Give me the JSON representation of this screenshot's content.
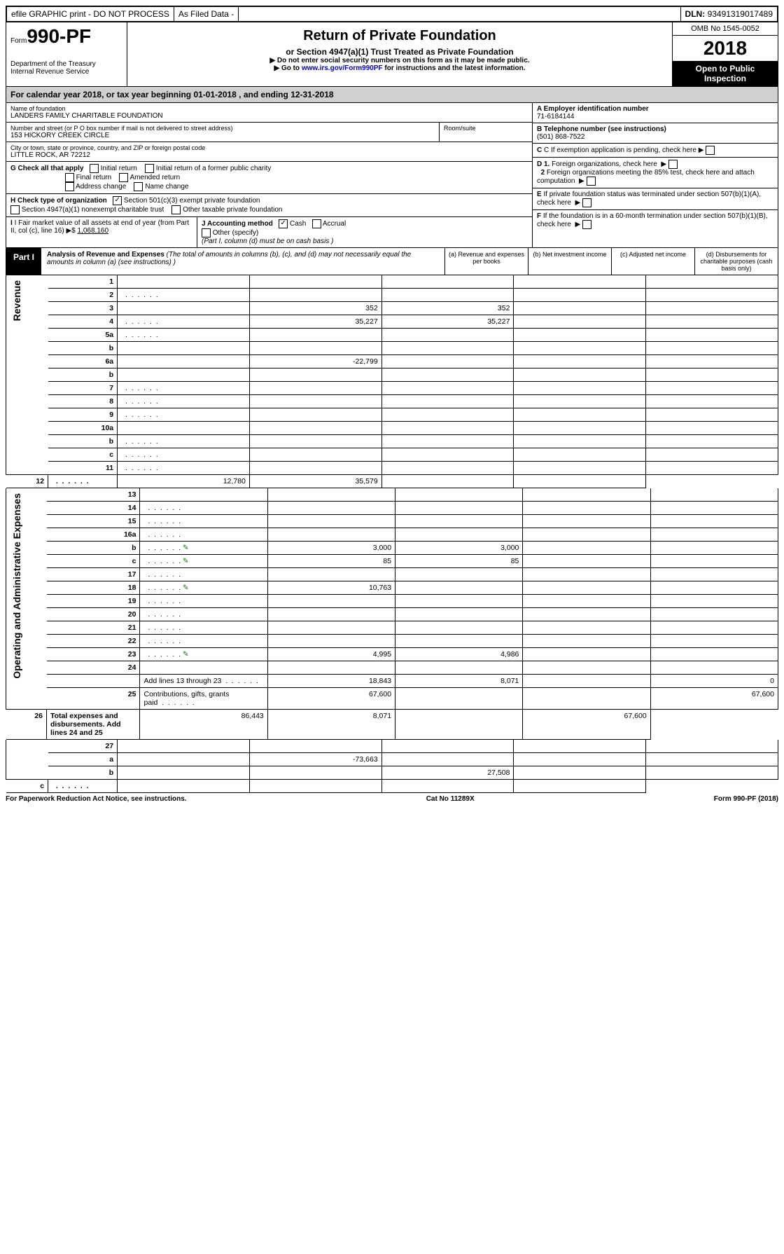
{
  "top_bar": {
    "efile": "efile GRAPHIC print - DO NOT PROCESS",
    "as_filed": "As Filed Data -",
    "dln_label": "DLN:",
    "dln": "93491319017489"
  },
  "header": {
    "form_prefix": "Form",
    "form_number": "990-PF",
    "dept": "Department of the Treasury",
    "irs": "Internal Revenue Service",
    "title": "Return of Private Foundation",
    "subtitle": "or Section 4947(a)(1) Trust Treated as Private Foundation",
    "note1": "▶ Do not enter social security numbers on this form as it may be made public.",
    "note2_pre": "▶ Go to ",
    "note2_link": "www.irs.gov/Form990PF",
    "note2_post": " for instructions and the latest information.",
    "omb": "OMB No 1545-0052",
    "year": "2018",
    "open_public": "Open to Public Inspection"
  },
  "cal_year": {
    "pre": "For calendar year 2018, or tax year beginning ",
    "begin": "01-01-2018",
    "mid": " , and ending ",
    "end": "12-31-2018"
  },
  "foundation": {
    "name_label": "Name of foundation",
    "name": "LANDERS FAMILY CHARITABLE FOUNDATION",
    "addr_label": "Number and street (or P O box number if mail is not delivered to street address)",
    "addr": "153 HICKORY CREEK CIRCLE",
    "room_label": "Room/suite",
    "city_label": "City or town, state or province, country, and ZIP or foreign postal code",
    "city": "LITTLE ROCK, AR  72212"
  },
  "right_box": {
    "A_label": "A Employer identification number",
    "A_val": "71-6184144",
    "B_label": "B Telephone number (see instructions)",
    "B_val": "(501) 868-7522",
    "C_label": "C If exemption application is pending, check here",
    "D1": "D 1. Foreign organizations, check here",
    "D2": "2 Foreign organizations meeting the 85% test, check here and attach computation",
    "E": "E If private foundation status was terminated under section 507(b)(1)(A), check here",
    "F": "F If the foundation is in a 60-month termination under section 507(b)(1)(B), check here"
  },
  "G": {
    "label": "G Check all that apply",
    "opts": [
      "Initial return",
      "Initial return of a former public charity",
      "Final return",
      "Amended return",
      "Address change",
      "Name change"
    ]
  },
  "H": {
    "label": "H Check type of organization",
    "opt1": "Section 501(c)(3) exempt private foundation",
    "opt2": "Section 4947(a)(1) nonexempt charitable trust",
    "opt3": "Other taxable private foundation"
  },
  "I": {
    "label": "I Fair market value of all assets at end of year (from Part II, col (c), line 16) ▶$",
    "val": "1,068,160"
  },
  "J": {
    "label": "J Accounting method",
    "cash": "Cash",
    "accrual": "Accrual",
    "other": "Other (specify)",
    "note": "(Part I, column (d) must be on cash basis )"
  },
  "part1": {
    "label": "Part I",
    "title": "Analysis of Revenue and Expenses",
    "note": "(The total of amounts in columns (b), (c), and (d) may not necessarily equal the amounts in column (a) (see instructions) )",
    "col_a": "(a) Revenue and expenses per books",
    "col_b": "(b) Net investment income",
    "col_c": "(c) Adjusted net income",
    "col_d": "(d) Disbursements for charitable purposes (cash basis only)"
  },
  "section_labels": {
    "revenue": "Revenue",
    "expenses": "Operating and Administrative Expenses"
  },
  "lines": [
    {
      "n": "1",
      "d": "",
      "a": "",
      "b": "",
      "c": ""
    },
    {
      "n": "2",
      "d": "",
      "dots": true,
      "a": "",
      "b": "",
      "c": ""
    },
    {
      "n": "3",
      "d": "",
      "a": "352",
      "b": "352",
      "c": ""
    },
    {
      "n": "4",
      "d": "",
      "dots": true,
      "a": "35,227",
      "b": "35,227",
      "c": ""
    },
    {
      "n": "5a",
      "d": "",
      "dots": true,
      "a": "",
      "b": "",
      "c": ""
    },
    {
      "n": "b",
      "d": "",
      "a": "",
      "b": "",
      "c": ""
    },
    {
      "n": "6a",
      "d": "",
      "a": "-22,799",
      "b": "",
      "c": ""
    },
    {
      "n": "b",
      "d": "",
      "a": "",
      "b": "",
      "c": ""
    },
    {
      "n": "7",
      "d": "",
      "dots": true,
      "a": "",
      "b": "",
      "c": ""
    },
    {
      "n": "8",
      "d": "",
      "dots": true,
      "a": "",
      "b": "",
      "c": ""
    },
    {
      "n": "9",
      "d": "",
      "dots": true,
      "a": "",
      "b": "",
      "c": ""
    },
    {
      "n": "10a",
      "d": "",
      "a": "",
      "b": "",
      "c": ""
    },
    {
      "n": "b",
      "d": "",
      "dots": true,
      "a": "",
      "b": "",
      "c": ""
    },
    {
      "n": "c",
      "d": "",
      "dots": true,
      "a": "",
      "b": "",
      "c": ""
    },
    {
      "n": "11",
      "d": "",
      "dots": true,
      "a": "",
      "b": "",
      "c": ""
    },
    {
      "n": "12",
      "d": "",
      "dots": true,
      "bold": true,
      "a": "12,780",
      "b": "35,579",
      "c": ""
    }
  ],
  "exp_lines": [
    {
      "n": "13",
      "d": "",
      "a": "",
      "b": "",
      "c": ""
    },
    {
      "n": "14",
      "d": "",
      "dots": true,
      "a": "",
      "b": "",
      "c": ""
    },
    {
      "n": "15",
      "d": "",
      "dots": true,
      "a": "",
      "b": "",
      "c": ""
    },
    {
      "n": "16a",
      "d": "",
      "dots": true,
      "a": "",
      "b": "",
      "c": ""
    },
    {
      "n": "b",
      "d": "",
      "dots": true,
      "icon": true,
      "a": "3,000",
      "b": "3,000",
      "c": ""
    },
    {
      "n": "c",
      "d": "",
      "dots": true,
      "icon": true,
      "a": "85",
      "b": "85",
      "c": ""
    },
    {
      "n": "17",
      "d": "",
      "dots": true,
      "a": "",
      "b": "",
      "c": ""
    },
    {
      "n": "18",
      "d": "",
      "dots": true,
      "icon": true,
      "a": "10,763",
      "b": "",
      "c": ""
    },
    {
      "n": "19",
      "d": "",
      "dots": true,
      "a": "",
      "b": "",
      "c": ""
    },
    {
      "n": "20",
      "d": "",
      "dots": true,
      "a": "",
      "b": "",
      "c": ""
    },
    {
      "n": "21",
      "d": "",
      "dots": true,
      "a": "",
      "b": "",
      "c": ""
    },
    {
      "n": "22",
      "d": "",
      "dots": true,
      "a": "",
      "b": "",
      "c": ""
    },
    {
      "n": "23",
      "d": "",
      "dots": true,
      "icon": true,
      "a": "4,995",
      "b": "4,986",
      "c": ""
    },
    {
      "n": "24",
      "d": "",
      "bold": true,
      "a": "",
      "b": "",
      "c": ""
    },
    {
      "n": "",
      "d": "0",
      "dots": true,
      "a": "18,843",
      "b": "8,071",
      "c": ""
    },
    {
      "n": "25",
      "d": "67,600",
      "dots": true,
      "a": "67,600",
      "b": "",
      "c": ""
    },
    {
      "n": "26",
      "d": "67,600",
      "bold": true,
      "a": "86,443",
      "b": "8,071",
      "c": ""
    }
  ],
  "sum_lines": [
    {
      "n": "27",
      "d": "",
      "a": "",
      "b": "",
      "c": ""
    },
    {
      "n": "a",
      "d": "",
      "bold": true,
      "a": "-73,663",
      "b": "",
      "c": ""
    },
    {
      "n": "b",
      "d": "",
      "bold": true,
      "a": "",
      "b": "27,508",
      "c": ""
    },
    {
      "n": "c",
      "d": "",
      "bold": true,
      "dots": true,
      "a": "",
      "b": "",
      "c": ""
    }
  ],
  "footer": {
    "left": "For Paperwork Reduction Act Notice, see instructions.",
    "mid": "Cat No 11289X",
    "right": "Form 990-PF (2018)"
  }
}
